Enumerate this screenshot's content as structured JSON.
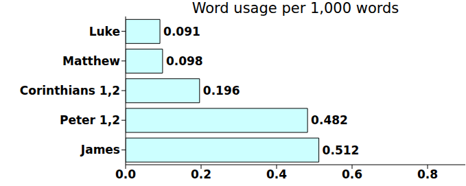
{
  "chart_data": {
    "type": "bar",
    "title": "Word usage per 1,000 words",
    "orientation": "horizontal",
    "categories": [
      "Luke",
      "Matthew",
      "Corinthians 1,2",
      "Peter 1,2",
      "James"
    ],
    "values": [
      0.091,
      0.098,
      0.196,
      0.482,
      0.512
    ],
    "color": "#ccffff",
    "xlim": [
      0,
      0.9
    ],
    "xticks": [
      {
        "value": 0,
        "label": "0.0"
      },
      0.2,
      0.4,
      0.6,
      0.8
    ],
    "grid": false,
    "data_labels": true
  }
}
